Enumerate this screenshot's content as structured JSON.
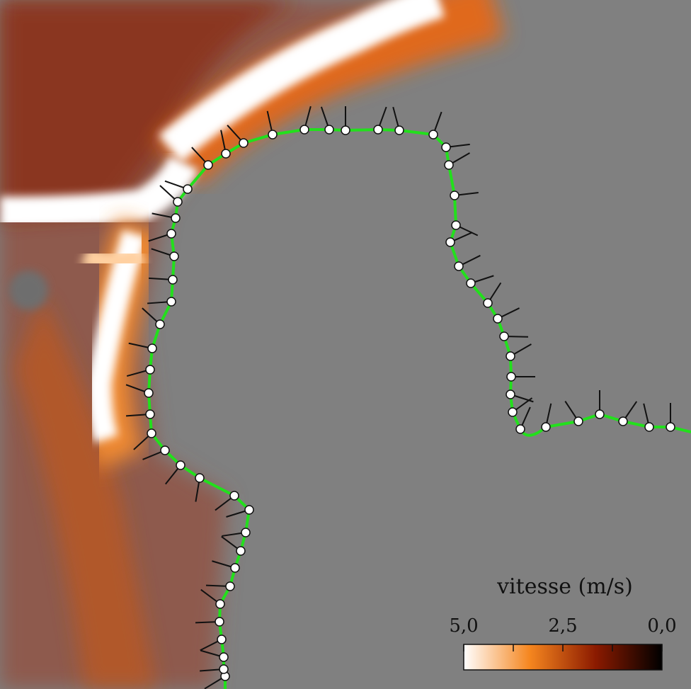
{
  "colorbar": {
    "title": "vitesse (m/s)",
    "ticks": [
      {
        "value": 5,
        "label": "5,0"
      },
      {
        "value": 2.5,
        "label": "2,5"
      },
      {
        "value": 0,
        "label": "0,0"
      }
    ],
    "colors": [
      "#ffffff",
      "#f5861f",
      "#8b1a00",
      "#000000"
    ]
  }
}
